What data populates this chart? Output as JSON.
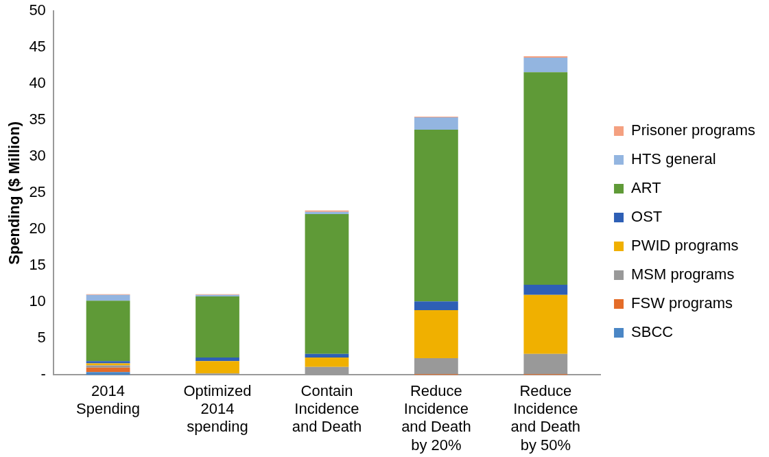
{
  "chart_data": {
    "type": "bar",
    "stacked": true,
    "ylabel": "Spending ($ Million)",
    "categories": [
      "2014 Spending",
      "Optimized 2014 spending",
      "Contain Incidence and Death",
      "Reduce Incidence and Death by 20%",
      "Reduce Incidence and Death by 50%"
    ],
    "ylim": [
      0,
      50
    ],
    "yticks": [
      {
        "value": 0,
        "label": "-"
      },
      5,
      10,
      15,
      20,
      25,
      30,
      35,
      40,
      45,
      50
    ],
    "grid": false,
    "legend": "right",
    "series": [
      {
        "name": "SBCC",
        "color": "#4a86c5",
        "values": [
          0.4,
          0,
          0,
          0,
          0
        ]
      },
      {
        "name": "FSW programs",
        "color": "#e46c28",
        "values": [
          0.6,
          0,
          0,
          0.1,
          0.1
        ]
      },
      {
        "name": "MSM programs",
        "color": "#999999",
        "values": [
          0.3,
          0.2,
          1.1,
          2.2,
          2.8
        ]
      },
      {
        "name": "PWID programs",
        "color": "#f0b000",
        "values": [
          0.3,
          1.7,
          1.3,
          6.6,
          8.1
        ]
      },
      {
        "name": "OST",
        "color": "#2e5fb5",
        "values": [
          0.3,
          0.5,
          0.5,
          1.2,
          1.4
        ]
      },
      {
        "name": "ART",
        "color": "#5f9a37",
        "values": [
          8.3,
          8.4,
          19.2,
          23.6,
          29.2
        ]
      },
      {
        "name": "HTS general",
        "color": "#93b5e0",
        "values": [
          0.8,
          0.2,
          0.3,
          1.7,
          2.0
        ]
      },
      {
        "name": "Prisoner programs",
        "color": "#f4a080",
        "values": [
          0.1,
          0.1,
          0.2,
          0.1,
          0.2
        ]
      }
    ]
  }
}
